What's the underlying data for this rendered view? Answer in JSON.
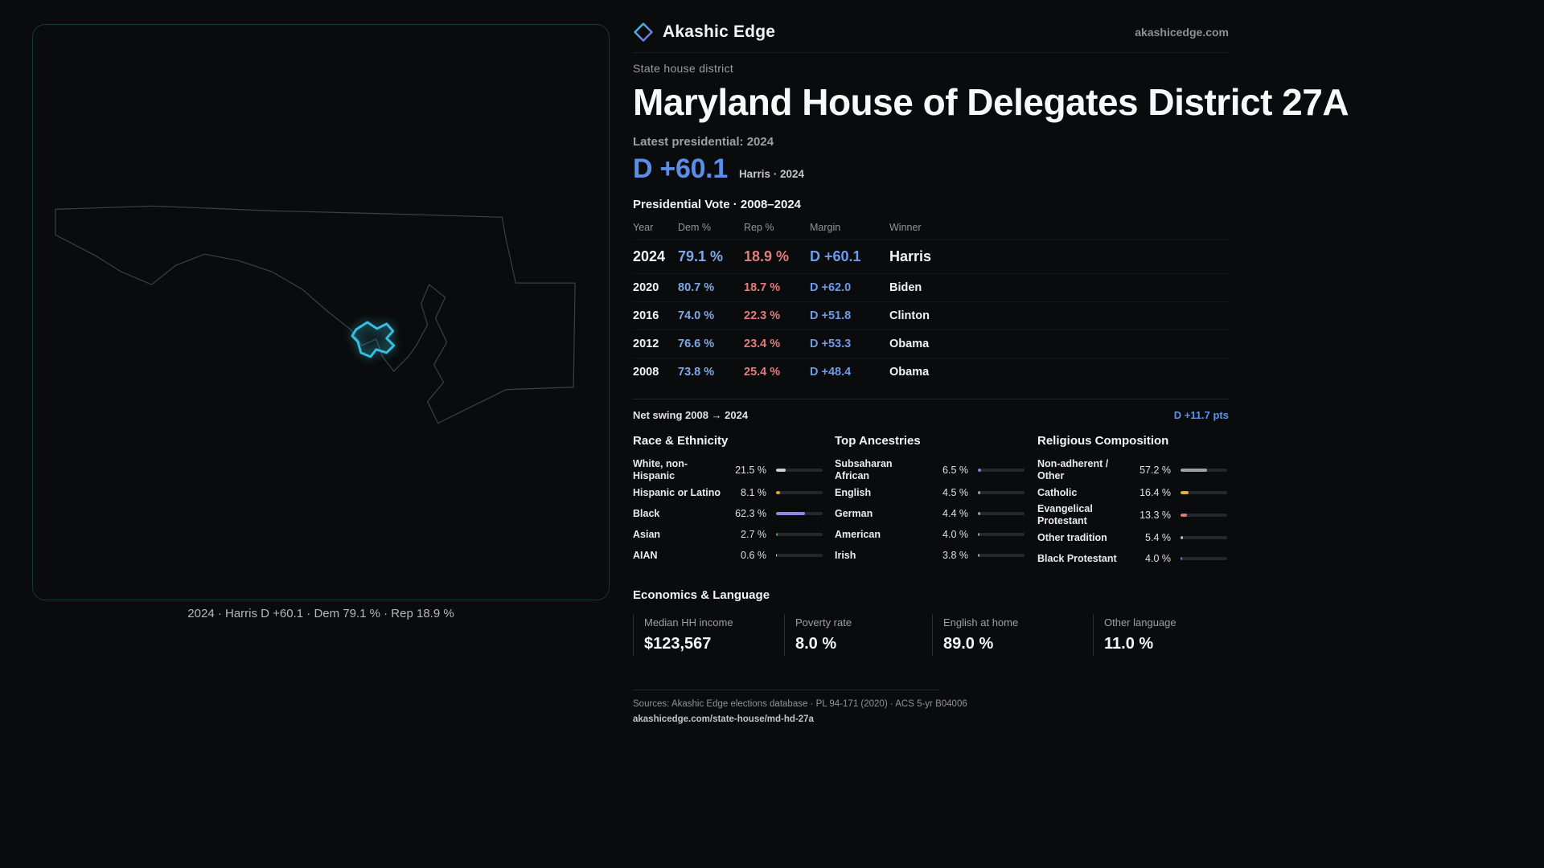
{
  "brand": {
    "name": "Akashic Edge",
    "domain": "akashicedge.com"
  },
  "header": {
    "kicker": "State house district",
    "title": "Maryland House of Delegates District 27A",
    "latest_label": "Latest presidential: 2024",
    "headline_margin": "D +60.1",
    "headline_detail": "Harris · 2024"
  },
  "table": {
    "title": "Presidential Vote · 2008–2024",
    "columns": [
      "Year",
      "Dem %",
      "Rep %",
      "Margin",
      "Winner"
    ],
    "rows": [
      {
        "year": "2024",
        "dem": "79.1 %",
        "rep": "18.9 %",
        "margin": "D +60.1",
        "winner": "Harris"
      },
      {
        "year": "2020",
        "dem": "80.7 %",
        "rep": "18.7 %",
        "margin": "D +62.0",
        "winner": "Biden"
      },
      {
        "year": "2016",
        "dem": "74.0 %",
        "rep": "22.3 %",
        "margin": "D +51.8",
        "winner": "Clinton"
      },
      {
        "year": "2012",
        "dem": "76.6 %",
        "rep": "23.4 %",
        "margin": "D +53.3",
        "winner": "Obama"
      },
      {
        "year": "2008",
        "dem": "73.8 %",
        "rep": "25.4 %",
        "margin": "D +48.4",
        "winner": "Obama"
      }
    ]
  },
  "net_swing": {
    "label": "Net swing 2008 → 2024",
    "value": "D +11.7 pts"
  },
  "demographics": {
    "race": {
      "title": "Race & Ethnicity",
      "items": [
        {
          "label": "White, non-Hispanic",
          "value": "21.5 %",
          "pct": 21.5,
          "color": "#c9ced3"
        },
        {
          "label": "Hispanic or Latino",
          "value": "8.1 %",
          "pct": 8.1,
          "color": "#e0a03c"
        },
        {
          "label": "Black",
          "value": "62.3 %",
          "pct": 62.3,
          "color": "#8f86e8"
        },
        {
          "label": "Asian",
          "value": "2.7 %",
          "pct": 2.7,
          "color": "#3fae6a"
        },
        {
          "label": "AIAN",
          "value": "0.6 %",
          "pct": 0.6,
          "color": "#d0d4d8"
        }
      ]
    },
    "ancestries": {
      "title": "Top Ancestries",
      "items": [
        {
          "label": "Subsaharan African",
          "value": "6.5 %",
          "pct": 6.5,
          "color": "#7b82e4"
        },
        {
          "label": "English",
          "value": "4.5 %",
          "pct": 4.5,
          "color": "#9aa1a8"
        },
        {
          "label": "German",
          "value": "4.4 %",
          "pct": 4.4,
          "color": "#9aa1a8"
        },
        {
          "label": "American",
          "value": "4.0 %",
          "pct": 4.0,
          "color": "#9aa1a8"
        },
        {
          "label": "Irish",
          "value": "3.8 %",
          "pct": 3.8,
          "color": "#9aa1a8"
        }
      ]
    },
    "religion": {
      "title": "Religious Composition",
      "items": [
        {
          "label": "Non-adherent / Other",
          "value": "57.2 %",
          "pct": 57.2,
          "color": "#9aa1a8"
        },
        {
          "label": "Catholic",
          "value": "16.4 %",
          "pct": 16.4,
          "color": "#d9b13c"
        },
        {
          "label": "Evangelical Protestant",
          "value": "13.3 %",
          "pct": 13.3,
          "color": "#e07878"
        },
        {
          "label": "Other tradition",
          "value": "5.4 %",
          "pct": 5.4,
          "color": "#b8bec4"
        },
        {
          "label": "Black Protestant",
          "value": "4.0 %",
          "pct": 4.0,
          "color": "#6d74e0"
        }
      ]
    }
  },
  "economics": {
    "title": "Economics & Language",
    "stats": [
      {
        "label": "Median HH income",
        "value": "$123,567"
      },
      {
        "label": "Poverty rate",
        "value": "8.0 %"
      },
      {
        "label": "English at home",
        "value": "89.0 %"
      },
      {
        "label": "Other language",
        "value": "11.0 %"
      }
    ]
  },
  "footer": {
    "sources": "Sources: Akashic Edge elections database · PL 94-171 (2020) · ACS 5-yr B04006",
    "permalink": "akashicedge.com/state-house/md-hd-27a"
  },
  "map": {
    "caption": "2024 · Harris D +60.1 · Dem 79.1 % · Rep 18.9 %",
    "outline_color": "#3c4046",
    "highlight_color": "#35c0df"
  },
  "colors": {
    "dem_blue": "#5a8ee8",
    "rep_red": "#e27d7d",
    "accent_cyan": "#35c0df",
    "background": "#0a0b0c"
  }
}
